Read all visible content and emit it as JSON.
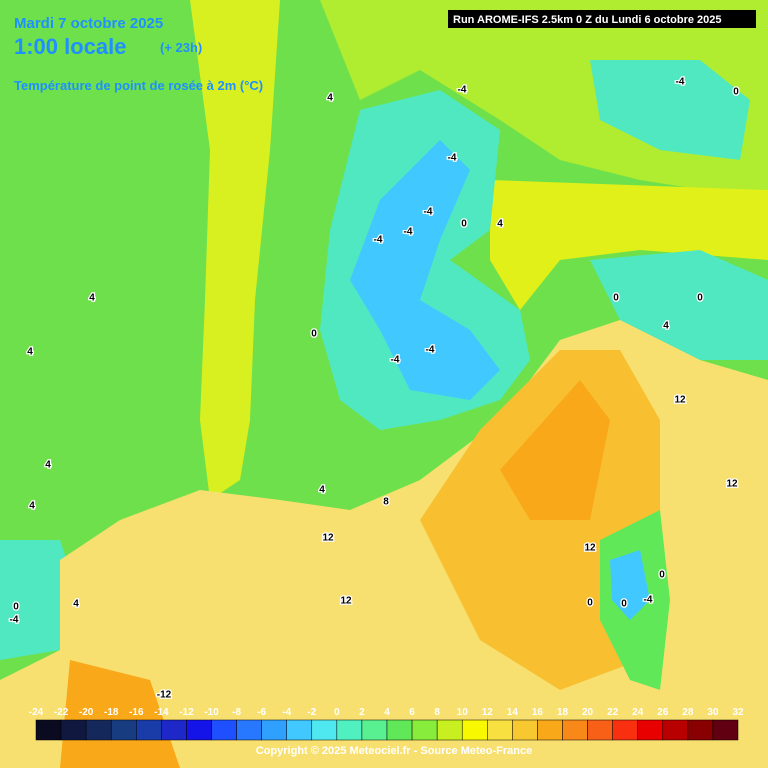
{
  "header": {
    "date": "Mardi 7 octobre 2025",
    "time": "1:00 locale",
    "lead": "(+ 23h)",
    "variable": "Température de point de rosée à 2m (°C)",
    "run": "Run AROME-IFS 2.5km 0 Z du Lundi 6 octobre 2025"
  },
  "legend": {
    "values": [
      -24,
      -22,
      -20,
      -18,
      -16,
      -14,
      -12,
      -10,
      -8,
      -6,
      -4,
      -2,
      0,
      2,
      4,
      6,
      8,
      10,
      12,
      14,
      16,
      18,
      20,
      22,
      24,
      26,
      28,
      30,
      32
    ],
    "colors": [
      "#0a0a20",
      "#101840",
      "#14285c",
      "#183c80",
      "#1a3ca8",
      "#1e28c8",
      "#1414e8",
      "#1e50ff",
      "#2878ff",
      "#30a0ff",
      "#40c8ff",
      "#50e8f0",
      "#50f0c0",
      "#58f090",
      "#60e858",
      "#88ec3c",
      "#c8f020",
      "#f8f800",
      "#f8e040",
      "#f8c830",
      "#f8a818",
      "#f88818",
      "#f86018",
      "#f83010",
      "#e80000",
      "#b80000",
      "#880000",
      "#600010"
    ]
  },
  "contour_labels": [
    "4",
    "4",
    "4",
    "4",
    "4",
    "-4",
    "-4",
    "-4",
    "-4",
    "-4",
    "-4",
    "0",
    "4",
    "0",
    "-4",
    "-4",
    "0",
    "0",
    "4",
    "0",
    "4",
    "8",
    "12",
    "12",
    "12",
    "12",
    "12",
    "0",
    "0",
    "-4",
    "-4",
    "0",
    "-12",
    "4",
    "0"
  ],
  "footer": "Copyright © 2025 Meteociel.fr - Source Meteo-France"
}
